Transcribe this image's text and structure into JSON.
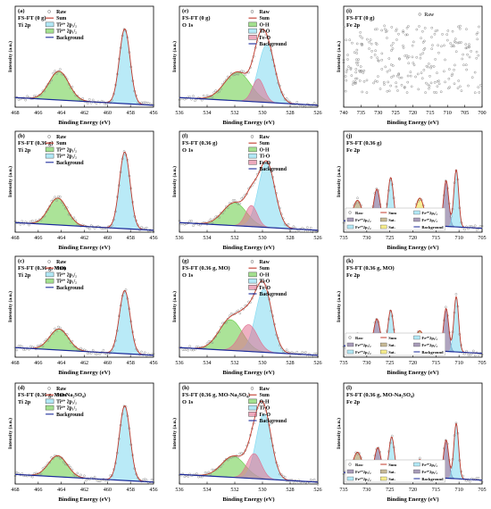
{
  "figure": {
    "panels": [
      {
        "id": "a",
        "label": "(a)",
        "sample": "FS-FT (0 g)",
        "element": "Ti 2p",
        "xlabel": "Binding Energy (eV)",
        "ylabel": "Intensity (a.u.)"
      },
      {
        "id": "e",
        "label": "(e)",
        "sample": "FS-FT (0 g)",
        "element": "O 1s",
        "xlabel": "Binding Energy (eV)",
        "ylabel": "Intensity (a.u.)"
      },
      {
        "id": "i",
        "label": "(i)",
        "sample": "FS-FT (0 g)",
        "element": "Fe 2p",
        "xlabel": "Binding Energy (eV)",
        "ylabel": "Intensity (a.u.)"
      },
      {
        "id": "b",
        "label": "(b)",
        "sample": "FS-FT (0.36 g)",
        "element": "Ti 2p",
        "xlabel": "Binding Energy (eV)",
        "ylabel": "Intensity (a.u.)"
      },
      {
        "id": "f",
        "label": "(f)",
        "sample": "FS-FT (0.36 g)",
        "element": "O 1s",
        "xlabel": "Binding Energy (eV)",
        "ylabel": "Intensity (a.u.)"
      },
      {
        "id": "j",
        "label": "(j)",
        "sample": "FS-FT (0.36 g)",
        "element": "Fe 2p",
        "xlabel": "Binding Energy (eV)",
        "ylabel": "Intensity (a.u.)"
      },
      {
        "id": "c",
        "label": "(c)",
        "sample": "FS-FT (0.36 g, MO)",
        "element": "Ti 2p",
        "xlabel": "Binding Energy (eV)",
        "ylabel": "Intensity (a.u.)"
      },
      {
        "id": "g",
        "label": "(g)",
        "sample": "FS-FT (0.36 g,  MO)",
        "element": "O 1s",
        "xlabel": "Binding Energy (eV)",
        "ylabel": "Intensity (a.u.)"
      },
      {
        "id": "k",
        "label": "(k)",
        "sample": "FS-FT (0.36 g,  MO)",
        "element": "Fe 2p",
        "xlabel": "Binding Energy (eV)",
        "ylabel": "Intensity (a.u.)"
      },
      {
        "id": "d",
        "label": "(d)",
        "sample": "FS-FT (0.36 g, MO-Na₂SO₄)",
        "element": "Ti 2p",
        "xlabel": "Binding Energy (eV)",
        "ylabel": "Intensity (a.u.)"
      },
      {
        "id": "h",
        "label": "(h)",
        "sample": "FS-FT (0.36 g,  MO-Na₂SO₄)",
        "element": "O 1s",
        "xlabel": "Binding Energy (eV)",
        "ylabel": "Intensity (a.u.)"
      },
      {
        "id": "l",
        "label": "(l)",
        "sample": "FS-FT (0.36 g,  MO-Na₂SO₄)",
        "element": "Fe 2p",
        "xlabel": "Binding Energy (eV)",
        "ylabel": "Intensity (a.u.)"
      }
    ]
  },
  "chart_data": [
    {
      "panel": "a",
      "type": "line",
      "xlabel": "Binding Energy (eV)",
      "ylabel": "Intensity (a.u.)",
      "xlim": [
        468,
        456
      ],
      "xticks": [
        468,
        466,
        464,
        462,
        460,
        458,
        456
      ],
      "legend": [
        "Raw",
        "Sum",
        "Ti⁴⁺ 2p₃/₂",
        "Ti⁴⁺ 2p₁/₂",
        "Background"
      ],
      "baseline": {
        "start": 0.1,
        "end": 0.02
      },
      "peaks": [
        {
          "name": "Ti⁴⁺ 2p₃/₂",
          "center": 458.5,
          "height": 0.78,
          "fwhm": 1.1,
          "color": "#7fd8f0"
        },
        {
          "name": "Ti⁴⁺ 2p₁/₂",
          "center": 464.2,
          "height": 0.3,
          "fwhm": 2.0,
          "color": "#66cc44"
        }
      ]
    },
    {
      "panel": "e",
      "type": "line",
      "xlabel": "Binding Energy (eV)",
      "ylabel": "Intensity (a.u.)",
      "xlim": [
        536,
        526
      ],
      "xticks": [
        536,
        534,
        532,
        530,
        528,
        526
      ],
      "legend": [
        "Raw",
        "Sum",
        "O-H",
        "Ti-O",
        "Fe-O",
        "Background"
      ],
      "baseline": {
        "start": 0.1,
        "end": 0.02
      },
      "peaks": [
        {
          "name": "O-H",
          "center": 531.8,
          "height": 0.3,
          "fwhm": 2.2,
          "color": "#66cc44"
        },
        {
          "name": "Ti-O",
          "center": 529.7,
          "height": 0.6,
          "fwhm": 1.4,
          "color": "#7fd8f0"
        },
        {
          "name": "Fe-O",
          "center": 530.3,
          "height": 0.24,
          "fwhm": 1.0,
          "color": "#e07090"
        }
      ]
    },
    {
      "panel": "i",
      "type": "scatter",
      "xlabel": "Binding Energy (eV)",
      "ylabel": "Intensity (a.u.)",
      "xlim": [
        740,
        700
      ],
      "xticks": [
        740,
        735,
        730,
        725,
        720,
        715,
        710,
        705,
        700
      ],
      "legend": [
        "Raw"
      ],
      "noise_level": 0.55
    },
    {
      "panel": "b",
      "type": "line",
      "xlabel": "Binding Energy (eV)",
      "ylabel": "Intensity (a.u.)",
      "xlim": [
        468,
        456
      ],
      "xticks": [
        468,
        466,
        464,
        462,
        460,
        458,
        456
      ],
      "legend": [
        "Raw",
        "Sum",
        "Ti⁴⁺ 2p₁/₂",
        "Ti⁴⁺ 2p₃/₂",
        "Background"
      ],
      "baseline": {
        "start": 0.1,
        "end": 0.02
      },
      "peaks": [
        {
          "name": "Ti⁴⁺ 2p₃/₂",
          "center": 458.5,
          "height": 0.8,
          "fwhm": 1.1,
          "color": "#7fd8f0"
        },
        {
          "name": "Ti⁴⁺ 2p₁/₂",
          "center": 464.3,
          "height": 0.28,
          "fwhm": 1.9,
          "color": "#66cc44"
        }
      ]
    },
    {
      "panel": "f",
      "type": "line",
      "xlabel": "Binding Energy (eV)",
      "ylabel": "Intensity (a.u.)",
      "xlim": [
        536,
        526
      ],
      "xticks": [
        536,
        534,
        532,
        530,
        528,
        526
      ],
      "legend": [
        "Raw",
        "Sum",
        "O-H",
        "Ti-O",
        "Fe-O",
        "Background"
      ],
      "baseline": {
        "start": 0.1,
        "end": 0.02
      },
      "peaks": [
        {
          "name": "O-H",
          "center": 532.0,
          "height": 0.24,
          "fwhm": 2.0,
          "color": "#66cc44"
        },
        {
          "name": "Ti-O",
          "center": 529.7,
          "height": 0.68,
          "fwhm": 1.4,
          "color": "#7fd8f0"
        },
        {
          "name": "Fe-O",
          "center": 530.8,
          "height": 0.22,
          "fwhm": 1.0,
          "color": "#e07090"
        }
      ]
    },
    {
      "panel": "j",
      "type": "line",
      "xlabel": "Binding Energy (eV)",
      "ylabel": "Intensity (a.u.)",
      "xlim": [
        735,
        705
      ],
      "xticks": [
        735,
        730,
        725,
        720,
        715,
        710,
        705
      ],
      "legend": [
        "Raw",
        "Fe³⁺2p₃/₂",
        "Fe²⁺2p₁/₂",
        "Sum",
        "Sat.",
        "Sat.",
        "Fe²⁺2p₃/₂",
        "Fe³⁺2p₁/₂",
        "Background"
      ],
      "baseline": {
        "start": 0.12,
        "end": 0.04
      },
      "peaks": [
        {
          "name": "Sat.",
          "center": 732.0,
          "height": 0.22,
          "fwhm": 2.2,
          "color": "#a08a50"
        },
        {
          "name": "Fe³⁺2p₁/₂",
          "center": 727.8,
          "height": 0.35,
          "fwhm": 1.6,
          "color": "#6e5a8a"
        },
        {
          "name": "Fe²⁺2p₁/₂",
          "center": 724.8,
          "height": 0.48,
          "fwhm": 1.4,
          "color": "#7fd8f0"
        },
        {
          "name": "Sat.",
          "center": 718.5,
          "height": 0.28,
          "fwhm": 2.2,
          "color": "#f0e040"
        },
        {
          "name": "Fe³⁺2p₃/₂",
          "center": 712.8,
          "height": 0.48,
          "fwhm": 1.3,
          "color": "#6e5a8a"
        },
        {
          "name": "Fe²⁺2p₃/₂",
          "center": 710.6,
          "height": 0.6,
          "fwhm": 1.2,
          "color": "#7fd8f0"
        }
      ]
    },
    {
      "panel": "c",
      "type": "line",
      "xlabel": "Binding Energy (eV)",
      "ylabel": "Intensity (a.u.)",
      "xlim": [
        468,
        456
      ],
      "xticks": [
        468,
        466,
        464,
        462,
        460,
        458,
        456
      ],
      "legend": [
        "Raw",
        "Sum",
        "Ti⁴⁺ 2p₃/₂",
        "Ti⁴⁺ 2p₁/₂",
        "Background"
      ],
      "baseline": {
        "start": 0.1,
        "end": 0.02
      },
      "peaks": [
        {
          "name": "Ti⁴⁺ 2p₃/₂",
          "center": 458.5,
          "height": 0.66,
          "fwhm": 1.1,
          "color": "#7fd8f0"
        },
        {
          "name": "Ti⁴⁺ 2p₁/₂",
          "center": 464.2,
          "height": 0.22,
          "fwhm": 1.9,
          "color": "#66cc44"
        }
      ]
    },
    {
      "panel": "g",
      "type": "line",
      "xlabel": "Binding Energy (eV)",
      "ylabel": "Intensity (a.u.)",
      "xlim": [
        536,
        526
      ],
      "xticks": [
        536,
        534,
        532,
        530,
        528,
        526
      ],
      "legend": [
        "Raw",
        "Sum",
        "O-H",
        "Ti-O",
        "Fe-O",
        "Background"
      ],
      "baseline": {
        "start": 0.1,
        "end": 0.02
      },
      "peaks": [
        {
          "name": "O-H",
          "center": 532.3,
          "height": 0.32,
          "fwhm": 2.0,
          "color": "#66cc44"
        },
        {
          "name": "Ti-O",
          "center": 529.9,
          "height": 0.66,
          "fwhm": 1.4,
          "color": "#7fd8f0"
        },
        {
          "name": "Fe-O",
          "center": 531.0,
          "height": 0.28,
          "fwhm": 1.5,
          "color": "#e07090"
        }
      ]
    },
    {
      "panel": "k",
      "type": "line",
      "xlabel": "Binding Energy (eV)",
      "ylabel": "Intensity (a.u.)",
      "xlim": [
        735,
        705
      ],
      "xticks": [
        735,
        730,
        725,
        720,
        715,
        710,
        705
      ],
      "legend": [
        "Raw",
        "Fe³⁺2p₃/₂",
        "Fe²⁺2p₁/₂",
        "Sum",
        "Sat.",
        "Sat.",
        "Fe²⁺2p₃/₂",
        "Fe³⁺2p₁/₂",
        "Background"
      ],
      "baseline": {
        "start": 0.12,
        "end": 0.04
      },
      "peaks": [
        {
          "name": "Sat.",
          "center": 732.0,
          "height": 0.12,
          "fwhm": 2.2,
          "color": "#a08a50"
        },
        {
          "name": "Fe³⁺2p₁/₂",
          "center": 727.8,
          "height": 0.3,
          "fwhm": 1.6,
          "color": "#6e5a8a"
        },
        {
          "name": "Fe²⁺2p₁/₂",
          "center": 724.8,
          "height": 0.4,
          "fwhm": 1.4,
          "color": "#7fd8f0"
        },
        {
          "name": "Sat.",
          "center": 718.5,
          "height": 0.2,
          "fwhm": 2.2,
          "color": "#f0e040"
        },
        {
          "name": "Fe³⁺2p₃/₂",
          "center": 712.8,
          "height": 0.45,
          "fwhm": 1.3,
          "color": "#6e5a8a"
        },
        {
          "name": "Fe²⁺2p₃/₂",
          "center": 710.6,
          "height": 0.58,
          "fwhm": 1.2,
          "color": "#7fd8f0"
        }
      ]
    },
    {
      "panel": "d",
      "type": "line",
      "xlabel": "Binding Energy (eV)",
      "ylabel": "Intensity (a.u.)",
      "xlim": [
        468,
        456
      ],
      "xticks": [
        468,
        466,
        464,
        462,
        460,
        458,
        456
      ],
      "legend": [
        "Raw",
        "Sum",
        "Ti⁴⁺ 2p₃/₂",
        "Ti⁴⁺ 2p₁/₂",
        "Background"
      ],
      "baseline": {
        "start": 0.1,
        "end": 0.02
      },
      "peaks": [
        {
          "name": "Ti⁴⁺ 2p₃/₂",
          "center": 458.5,
          "height": 0.78,
          "fwhm": 1.1,
          "color": "#7fd8f0"
        },
        {
          "name": "Ti⁴⁺ 2p₁/₂",
          "center": 464.3,
          "height": 0.22,
          "fwhm": 1.9,
          "color": "#66cc44"
        }
      ]
    },
    {
      "panel": "h",
      "type": "line",
      "xlabel": "Binding Energy (eV)",
      "ylabel": "Intensity (a.u.)",
      "xlim": [
        536,
        526
      ],
      "xticks": [
        536,
        534,
        532,
        530,
        528,
        526
      ],
      "legend": [
        "Raw",
        "Sum",
        "O-H",
        "Ti-O",
        "Fe-O",
        "Background"
      ],
      "baseline": {
        "start": 0.1,
        "end": 0.02
      },
      "peaks": [
        {
          "name": "O-H",
          "center": 532.1,
          "height": 0.22,
          "fwhm": 2.0,
          "color": "#66cc44"
        },
        {
          "name": "Ti-O",
          "center": 529.9,
          "height": 0.68,
          "fwhm": 1.3,
          "color": "#7fd8f0"
        },
        {
          "name": "Fe-O",
          "center": 530.6,
          "height": 0.26,
          "fwhm": 1.2,
          "color": "#e07090"
        }
      ]
    },
    {
      "panel": "l",
      "type": "line",
      "xlabel": "Binding Energy (eV)",
      "ylabel": "Intensity (a.u.)",
      "xlim": [
        735,
        705
      ],
      "xticks": [
        735,
        730,
        725,
        720,
        715,
        710,
        705
      ],
      "legend": [
        "Raw",
        "Fe³⁺2p₃/₂",
        "Fe²⁺2p₁/₂",
        "Sum",
        "Sat.",
        "Sat.",
        "Fe²⁺2p₃/₂",
        "Fe³⁺2p₁/₂",
        "Background"
      ],
      "baseline": {
        "start": 0.12,
        "end": 0.04
      },
      "peaks": [
        {
          "name": "Sat.",
          "center": 732.0,
          "height": 0.22,
          "fwhm": 2.2,
          "color": "#a08a50"
        },
        {
          "name": "Fe³⁺2p₁/₂",
          "center": 727.6,
          "height": 0.28,
          "fwhm": 1.6,
          "color": "#6e5a8a"
        },
        {
          "name": "Fe²⁺2p₁/₂",
          "center": 724.6,
          "height": 0.4,
          "fwhm": 1.4,
          "color": "#7fd8f0"
        },
        {
          "name": "Sat.",
          "center": 718.5,
          "height": 0.18,
          "fwhm": 2.2,
          "color": "#f0e040"
        },
        {
          "name": "Fe³⁺2p₃/₂",
          "center": 712.8,
          "height": 0.4,
          "fwhm": 1.3,
          "color": "#6e5a8a"
        },
        {
          "name": "Fe²⁺2p₃/₂",
          "center": 710.6,
          "height": 0.58,
          "fwhm": 1.2,
          "color": "#7fd8f0"
        }
      ]
    }
  ],
  "colors": {
    "raw": "#888888",
    "sum": "#c0392b",
    "background": "#1a2a9a",
    "axis": "#000000"
  }
}
